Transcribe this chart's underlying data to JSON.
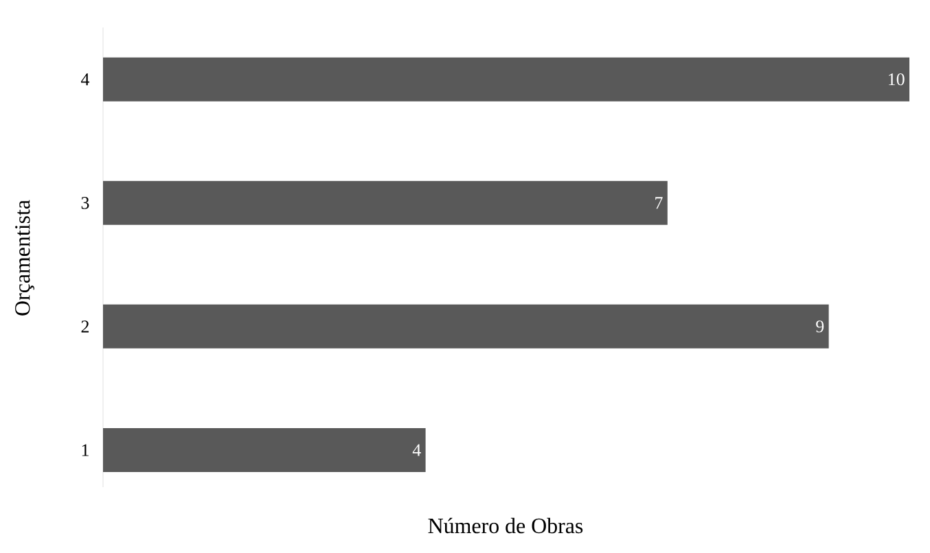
{
  "chart_data": {
    "type": "bar",
    "orientation": "horizontal",
    "xlabel": "Número de Obras",
    "ylabel": "Orçamentista",
    "categories": [
      "4",
      "3",
      "2",
      "1"
    ],
    "values": [
      10,
      7,
      9,
      4
    ],
    "color": "#595959",
    "data_labels": true
  }
}
